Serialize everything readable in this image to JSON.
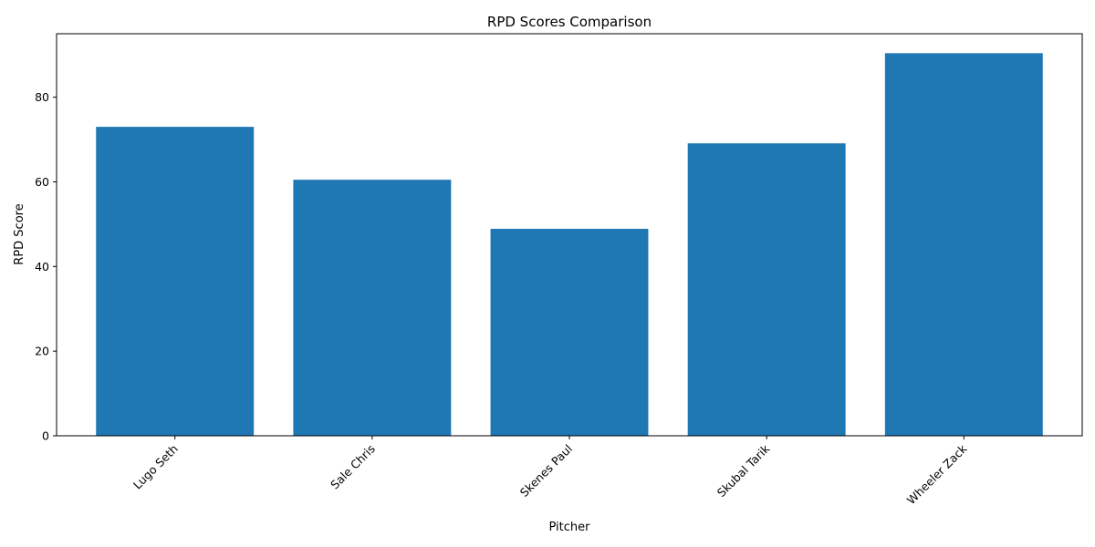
{
  "chart_data": {
    "type": "bar",
    "title": "RPD Scores Comparison",
    "xlabel": "Pitcher",
    "ylabel": "RPD Score",
    "categories": [
      "Lugo Seth",
      "Sale Chris",
      "Skenes Paul",
      "Skubal Tarik",
      "Wheeler Zack"
    ],
    "values": [
      73.0,
      60.5,
      48.9,
      69.1,
      90.4
    ],
    "ylim": [
      0,
      95
    ],
    "yticks": [
      0,
      20,
      40,
      60,
      80
    ],
    "grid": false,
    "legend": "none",
    "bar_color": "#1f77b4"
  }
}
